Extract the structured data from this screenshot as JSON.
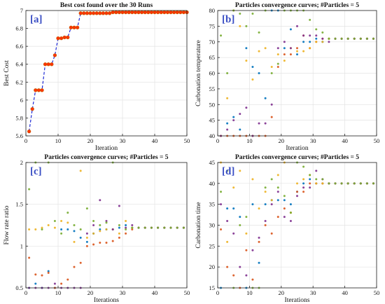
{
  "chart_data": [
    {
      "type": "line",
      "panel_label": "[a]",
      "title": "Best cost found over the 30 Runs",
      "xlabel": "Iteration",
      "ylabel": "Best Cost",
      "xlim": [
        0,
        50
      ],
      "ylim": [
        5.6,
        7
      ],
      "xticks": [
        0,
        10,
        20,
        30,
        40,
        50
      ],
      "yticks": [
        5.6,
        5.8,
        6,
        6.2,
        6.4,
        6.6,
        6.8,
        7
      ],
      "grid": true,
      "line_color": "#1f2bd6",
      "marker_color": "#ff3300",
      "marker_edge": "#c45a00",
      "x": [
        1,
        2,
        3,
        4,
        5,
        6,
        7,
        8,
        9,
        10,
        11,
        12,
        13,
        14,
        15,
        16,
        17,
        18,
        19,
        20,
        21,
        22,
        23,
        24,
        25,
        26,
        27,
        28,
        29,
        30,
        31,
        32,
        33,
        34,
        35,
        36,
        37,
        38,
        39,
        40,
        41,
        42,
        43,
        44,
        45,
        46,
        47,
        48,
        49,
        50
      ],
      "y": [
        5.65,
        5.9,
        6.11,
        6.11,
        6.11,
        6.4,
        6.4,
        6.4,
        6.5,
        6.69,
        6.69,
        6.7,
        6.7,
        6.81,
        6.81,
        6.81,
        6.97,
        6.97,
        6.97,
        6.97,
        6.97,
        6.97,
        6.97,
        6.97,
        6.97,
        6.97,
        6.98,
        6.98,
        6.98,
        6.98,
        6.98,
        6.98,
        6.98,
        6.98,
        6.98,
        6.98,
        6.98,
        6.98,
        6.98,
        6.98,
        6.98,
        6.98,
        6.98,
        6.98,
        6.98,
        6.98,
        6.98,
        6.98,
        6.98,
        6.98
      ]
    },
    {
      "type": "scatter",
      "panel_label": "[b]",
      "title": "Particles convergence curves; #Particles = 5",
      "xlabel": "Iteration",
      "ylabel": "Carbonation temperature",
      "xlim": [
        0,
        50
      ],
      "ylim": [
        40,
        80
      ],
      "xticks": [
        0,
        10,
        20,
        30,
        40,
        50
      ],
      "yticks": [
        40,
        45,
        50,
        55,
        60,
        65,
        70,
        75,
        80
      ],
      "grid": true,
      "series": [
        {
          "color": "#0072bd",
          "x": [
            1,
            3,
            5,
            7,
            9,
            11,
            13,
            15,
            17,
            19,
            21,
            23,
            25,
            27,
            29,
            31,
            33,
            35,
            37,
            39,
            41,
            43,
            45,
            47,
            49
          ],
          "y": [
            40,
            44,
            46,
            42,
            68,
            62,
            60,
            52,
            80,
            80,
            68,
            74,
            66,
            70,
            70,
            71,
            70,
            71,
            71,
            71,
            71,
            71,
            71,
            71,
            71
          ]
        },
        {
          "color": "#d95319",
          "x": [
            1,
            3,
            5,
            7,
            9,
            11,
            13,
            15,
            17,
            19,
            21,
            23,
            25,
            27,
            29,
            31,
            33,
            35,
            37,
            39,
            41,
            43,
            45,
            47,
            49
          ],
          "y": [
            40,
            40,
            40,
            40,
            40,
            40,
            40,
            40,
            46,
            62,
            66,
            66,
            68,
            72,
            68,
            70,
            71,
            71,
            71,
            71,
            71,
            71,
            71,
            71,
            71
          ]
        },
        {
          "color": "#edb120",
          "x": [
            1,
            3,
            5,
            7,
            9,
            11,
            13,
            15,
            17,
            19,
            21,
            23,
            25,
            27,
            29,
            31,
            33,
            35,
            37,
            39,
            41,
            43,
            45,
            47,
            49
          ],
          "y": [
            40,
            52,
            80,
            75,
            64,
            58,
            67,
            68,
            62,
            66,
            64,
            68,
            67,
            67,
            68,
            70,
            70,
            71,
            71,
            71,
            71,
            71,
            71,
            71,
            71
          ]
        },
        {
          "color": "#7e2f8e",
          "x": [
            1,
            3,
            5,
            7,
            9,
            11,
            13,
            15,
            17,
            19,
            21,
            23,
            25,
            27,
            29,
            31,
            33,
            35,
            37,
            39,
            41,
            43,
            45,
            47,
            49
          ],
          "y": [
            40,
            42,
            45,
            47,
            49,
            40,
            44,
            44,
            50,
            68,
            70,
            68,
            75,
            72,
            72,
            72,
            71,
            70,
            71,
            71,
            71,
            71,
            71,
            71,
            71
          ]
        },
        {
          "color": "#77ac30",
          "x": [
            1,
            3,
            5,
            7,
            9,
            11,
            13,
            15,
            17,
            19,
            21,
            23,
            25,
            27,
            29,
            31,
            33,
            35,
            37,
            39,
            41,
            43,
            45,
            47,
            49
          ],
          "y": [
            72,
            60,
            80,
            79,
            75,
            79,
            73,
            80,
            60,
            63,
            80,
            80,
            80,
            80,
            77,
            74,
            73,
            71,
            71,
            71,
            71,
            71,
            71,
            71,
            71
          ]
        }
      ]
    },
    {
      "type": "scatter",
      "panel_label": "[c]",
      "title": "Particles convergence curves; #Particles = 5",
      "xlabel": "Iterations",
      "ylabel": "Flow rate ratio",
      "xlim": [
        0,
        50
      ],
      "ylim": [
        0.5,
        2
      ],
      "xticks": [
        0,
        10,
        20,
        30,
        40,
        50
      ],
      "yticks": [
        0.5,
        1,
        1.5,
        2
      ],
      "grid": true,
      "series": [
        {
          "color": "#0072bd",
          "x": [
            1,
            3,
            5,
            7,
            9,
            11,
            13,
            15,
            17,
            19,
            21,
            23,
            25,
            27,
            29,
            31,
            33,
            35,
            37,
            39,
            41,
            43,
            45,
            47,
            49
          ],
          "y": [
            0.5,
            0.55,
            0.5,
            0.7,
            0.5,
            1.2,
            1.2,
            1.18,
            1.1,
            1.05,
            1.15,
            1.2,
            1.2,
            1.2,
            1.22,
            1.25,
            1.22,
            1.22,
            1.22,
            1.22,
            1.22,
            1.22,
            1.22,
            1.22,
            1.22
          ]
        },
        {
          "color": "#d95319",
          "x": [
            1,
            3,
            5,
            7,
            9,
            11,
            13,
            15,
            17,
            19,
            21,
            23,
            25,
            27,
            29,
            31,
            33,
            35,
            37,
            39,
            41,
            43,
            45,
            47,
            49
          ],
          "y": [
            0.86,
            0.66,
            0.65,
            0.68,
            0.5,
            0.55,
            0.6,
            0.75,
            0.8,
            1.0,
            1.02,
            1.04,
            1.04,
            1.06,
            1.1,
            1.15,
            1.2,
            1.22,
            1.22,
            1.22,
            1.22,
            1.22,
            1.22,
            1.22,
            1.22
          ]
        },
        {
          "color": "#edb120",
          "x": [
            1,
            3,
            5,
            7,
            9,
            11,
            13,
            15,
            17,
            19,
            21,
            23,
            25,
            27,
            29,
            31,
            33,
            35,
            37,
            39,
            41,
            43,
            45,
            47,
            49
          ],
          "y": [
            1.2,
            1.2,
            1.22,
            1.25,
            1.22,
            1.3,
            1.28,
            1.05,
            1.9,
            1.1,
            1.15,
            1.18,
            1.2,
            1.2,
            1.15,
            1.3,
            1.22,
            1.22,
            1.22,
            1.22,
            1.22,
            1.22,
            1.22,
            1.22,
            1.22
          ]
        },
        {
          "color": "#7e2f8e",
          "x": [
            1,
            3,
            5,
            7,
            9,
            11,
            13,
            15,
            17,
            19,
            21,
            23,
            25,
            27,
            29,
            31,
            33,
            35,
            37,
            39,
            41,
            43,
            45,
            47,
            49
          ],
          "y": [
            0.5,
            0.5,
            0.5,
            0.5,
            0.55,
            0.5,
            0.5,
            0.5,
            0.5,
            1.15,
            1.25,
            1.55,
            1.3,
            1.2,
            1.48,
            1.22,
            1.25,
            1.22,
            1.22,
            1.22,
            1.22,
            1.22,
            1.22,
            1.22,
            1.22
          ]
        },
        {
          "color": "#77ac30",
          "x": [
            1,
            3,
            5,
            7,
            9,
            11,
            13,
            15,
            17,
            19,
            21,
            23,
            25,
            27,
            29,
            31,
            33,
            35,
            37,
            39,
            41,
            43,
            45,
            47,
            49
          ],
          "y": [
            1.68,
            2,
            1.2,
            2,
            1.3,
            1.15,
            1.4,
            1.25,
            1.2,
            1.45,
            1.3,
            1.25,
            1.28,
            2,
            1.25,
            1.2,
            1.22,
            1.22,
            1.22,
            1.22,
            1.22,
            1.22,
            1.22,
            1.22,
            1.22
          ]
        }
      ]
    },
    {
      "type": "scatter",
      "panel_label": "[d]",
      "title": "Particles convergence curves; #Particles = 5",
      "xlabel": "Iterations",
      "ylabel": "Carbonation time",
      "xlim": [
        0,
        50
      ],
      "ylim": [
        15,
        45
      ],
      "xticks": [
        0,
        10,
        20,
        30,
        40,
        50
      ],
      "yticks": [
        15,
        20,
        25,
        30,
        35,
        40,
        45
      ],
      "grid": true,
      "series": [
        {
          "color": "#0072bd",
          "x": [
            1,
            3,
            5,
            7,
            9,
            11,
            13,
            15,
            17,
            19,
            21,
            23,
            25,
            27,
            29,
            31,
            33,
            35,
            37,
            39,
            41,
            43,
            45,
            47,
            49
          ],
          "y": [
            15,
            34,
            34,
            32,
            15,
            35,
            21,
            35,
            36,
            36,
            36,
            35,
            38,
            40,
            41,
            40,
            40,
            40,
            40,
            40,
            40,
            40,
            40,
            40,
            40
          ]
        },
        {
          "color": "#d95319",
          "x": [
            1,
            3,
            5,
            7,
            9,
            11,
            13,
            15,
            17,
            19,
            21,
            23,
            25,
            27,
            29,
            31,
            33,
            35,
            37,
            39,
            41,
            43,
            45,
            47,
            49
          ],
          "y": [
            29,
            20,
            18,
            15,
            24,
            17,
            26,
            30,
            28,
            32,
            34,
            33,
            38,
            38,
            40,
            40,
            40,
            40,
            40,
            40,
            40,
            40,
            40,
            40,
            40
          ]
        },
        {
          "color": "#edb120",
          "x": [
            1,
            3,
            5,
            7,
            9,
            11,
            13,
            15,
            17,
            19,
            21,
            23,
            25,
            27,
            29,
            31,
            33,
            35,
            37,
            39,
            41,
            43,
            45,
            47,
            49
          ],
          "y": [
            45,
            26,
            39,
            43,
            28,
            41,
            34,
            38,
            36,
            42,
            45,
            33,
            40,
            41,
            42,
            40,
            40,
            40,
            40,
            40,
            40,
            40,
            40,
            40,
            40
          ]
        },
        {
          "color": "#7e2f8e",
          "x": [
            1,
            3,
            5,
            7,
            9,
            11,
            13,
            15,
            17,
            19,
            21,
            23,
            25,
            27,
            29,
            31,
            33,
            35,
            37,
            39,
            41,
            43,
            45,
            47,
            49
          ],
          "y": [
            35,
            31,
            28,
            20,
            18,
            24,
            27,
            31,
            35,
            38,
            32,
            31,
            37,
            39,
            39,
            43,
            41,
            40,
            40,
            40,
            40,
            40,
            40,
            40,
            40
          ]
        },
        {
          "color": "#77ac30",
          "x": [
            1,
            3,
            5,
            7,
            9,
            11,
            13,
            15,
            17,
            19,
            21,
            23,
            25,
            27,
            29,
            31,
            33,
            35,
            37,
            39,
            41,
            43,
            45,
            47,
            49
          ],
          "y": [
            38,
            43,
            15,
            30,
            32,
            15,
            15,
            39,
            41,
            39,
            37,
            33,
            45,
            44,
            42,
            41,
            41,
            40,
            40,
            40,
            40,
            40,
            40,
            40,
            40
          ]
        }
      ]
    }
  ]
}
